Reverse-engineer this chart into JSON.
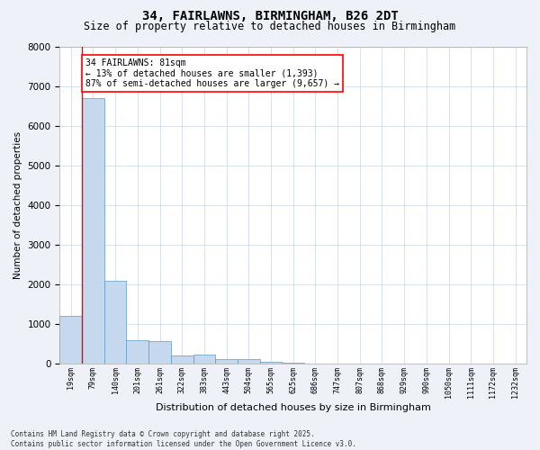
{
  "title": "34, FAIRLAWNS, BIRMINGHAM, B26 2DT",
  "subtitle": "Size of property relative to detached houses in Birmingham",
  "xlabel": "Distribution of detached houses by size in Birmingham",
  "ylabel": "Number of detached properties",
  "bin_labels": [
    "19sqm",
    "79sqm",
    "140sqm",
    "201sqm",
    "261sqm",
    "322sqm",
    "383sqm",
    "443sqm",
    "504sqm",
    "565sqm",
    "625sqm",
    "686sqm",
    "747sqm",
    "807sqm",
    "868sqm",
    "929sqm",
    "990sqm",
    "1050sqm",
    "1111sqm",
    "1172sqm",
    "1232sqm"
  ],
  "bar_values": [
    1200,
    6700,
    2100,
    600,
    580,
    200,
    230,
    110,
    110,
    60,
    30,
    0,
    0,
    0,
    0,
    0,
    0,
    0,
    0,
    0,
    0
  ],
  "bar_color": "#c5d8ed",
  "bar_edge_color": "#5a9ac8",
  "ylim": [
    0,
    8000
  ],
  "yticks": [
    0,
    1000,
    2000,
    3000,
    4000,
    5000,
    6000,
    7000,
    8000
  ],
  "property_line_x": 1.0,
  "annotation_title": "34 FAIRLAWNS: 81sqm",
  "annotation_line1": "← 13% of detached houses are smaller (1,393)",
  "annotation_line2": "87% of semi-detached houses are larger (9,657) →",
  "footer_line1": "Contains HM Land Registry data © Crown copyright and database right 2025.",
  "footer_line2": "Contains public sector information licensed under the Open Government Licence v3.0.",
  "background_color": "#eef2f8",
  "plot_background": "#ffffff",
  "grid_color": "#c8d4e8"
}
